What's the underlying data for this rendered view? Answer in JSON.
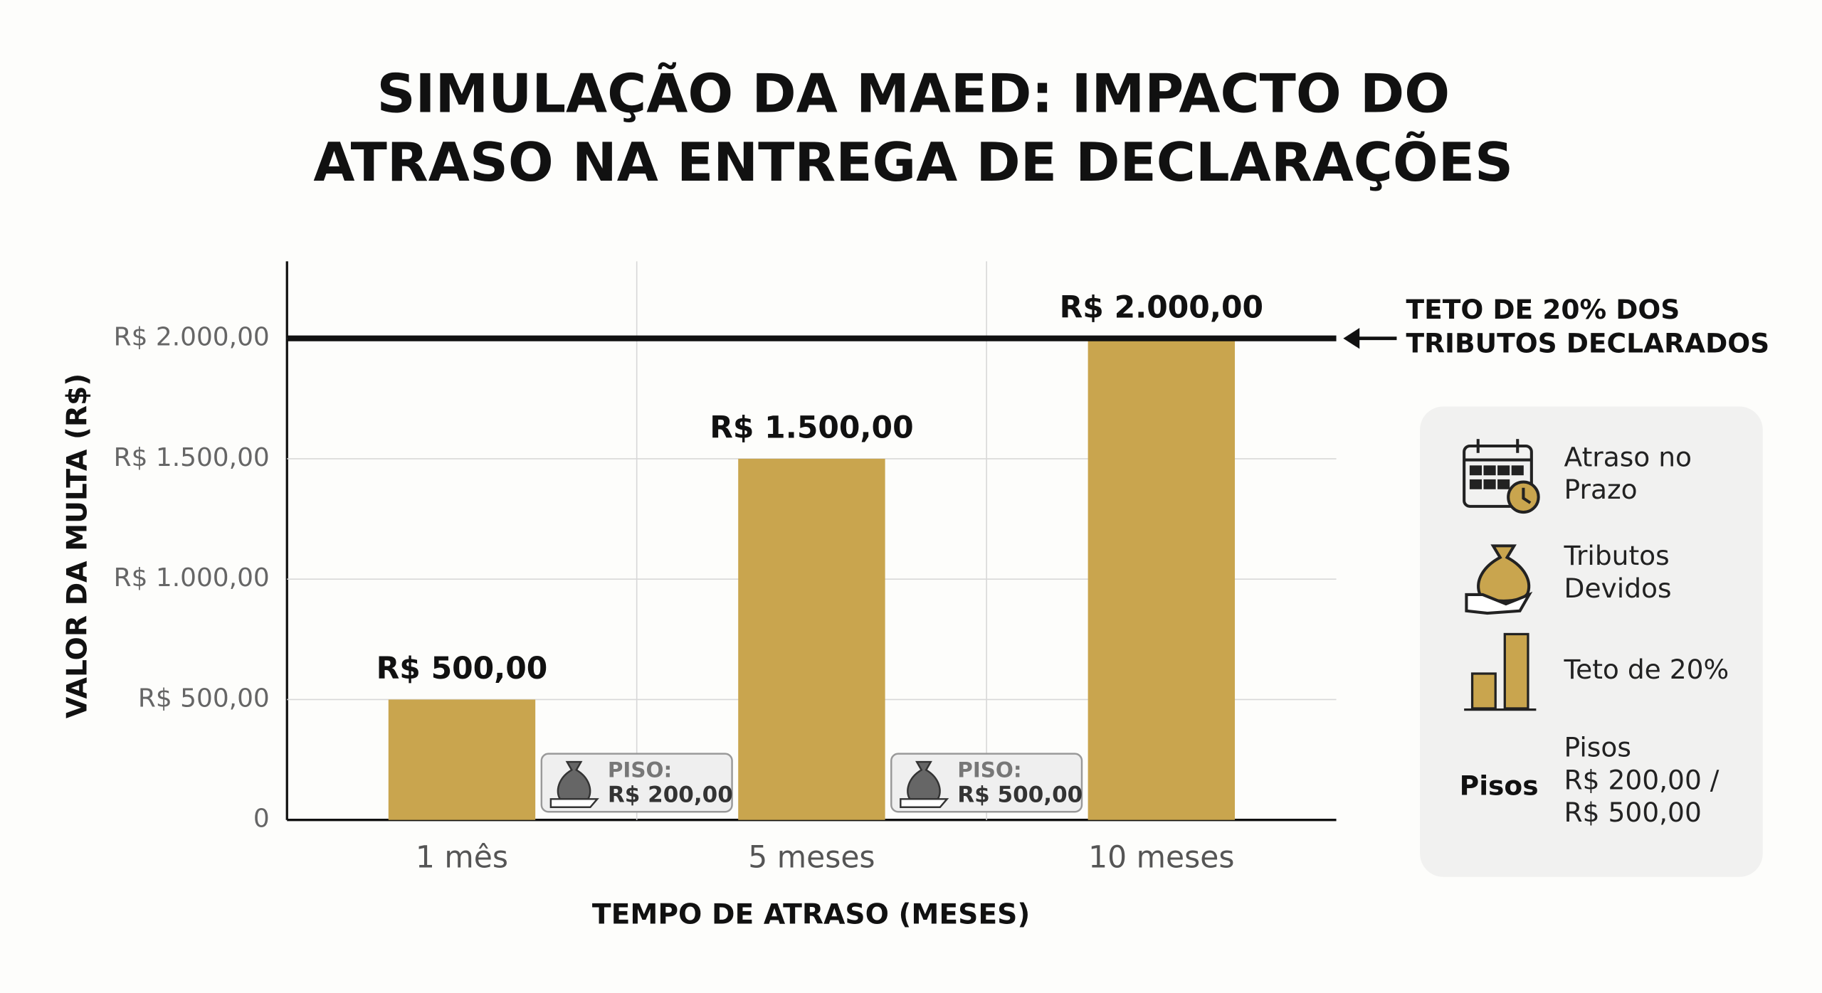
{
  "chart_data": {
    "type": "bar",
    "title_lines": [
      "SIMULAÇÃO DA MAED: IMPACTO DO",
      "ATRASO NA ENTREGA DE DECLARAÇÕES"
    ],
    "x_label": "TEMPO DE ATRASO (MESES)",
    "y_label": "VALOR DA MULTA (R$)",
    "categories": [
      "1 mês",
      "5 meses",
      "10 meses"
    ],
    "values": [
      500,
      1500,
      2000
    ],
    "value_labels": [
      "R$ 500,00",
      "R$ 1.500,00",
      "R$ 2.000,00"
    ],
    "color": "#c9a54e",
    "ylim": [
      0,
      2320
    ],
    "yticks": [
      0,
      {
        "value": 500,
        "label": "R$ 500,00"
      },
      {
        "value": 1000,
        "label": "R$ 1.000,00"
      },
      {
        "value": 1500,
        "label": "R$ 1.500,00"
      },
      {
        "value": 2000,
        "label": "R$ 2.000,00"
      }
    ],
    "grid": true,
    "reference_line": {
      "value": 2000,
      "label_lines": [
        "TETO DE 20% DOS",
        "TRIBUTOS DECLARADOS"
      ]
    },
    "floors": [
      {
        "label": "PISO:",
        "value_label": "R$ 200,00"
      },
      {
        "label": "PISO:",
        "value_label": "R$ 500,00"
      }
    ],
    "legend": {
      "items": [
        {
          "lines": [
            "Atraso no",
            "Prazo"
          ]
        },
        {
          "lines": [
            "Tributos",
            "Devidos"
          ]
        },
        {
          "lines": [
            "Teto de 20%"
          ]
        },
        {
          "tag": "Pisos",
          "lines": [
            "Pisos",
            "R$ 200,00 /",
            "R$ 500,00"
          ]
        }
      ]
    }
  }
}
